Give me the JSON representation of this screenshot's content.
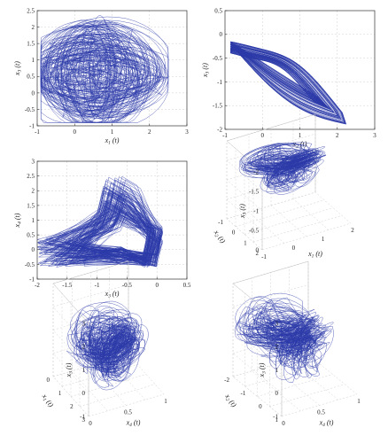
{
  "chart_data": [
    {
      "type": "line",
      "panel": "top-left",
      "xlabel": "x1 (t)",
      "ylabel": "x3 (t)",
      "xlim": [
        -1,
        3
      ],
      "ylim": [
        -1,
        2.5
      ],
      "xticks": [
        "-1",
        "0",
        "1",
        "2",
        "3"
      ],
      "yticks": [
        "-1",
        "-0.5",
        "0",
        "0.5",
        "1",
        "1.5",
        "2",
        "2.5"
      ],
      "grid": true,
      "series": [
        {
          "color": "#2b3aa8",
          "shape": "dense chaotic loops",
          "x_range": [
            -0.9,
            2.5
          ],
          "y_range": [
            -0.9,
            2.35
          ]
        }
      ]
    },
    {
      "type": "line",
      "panel": "top-right",
      "xlabel": "x2 (t)",
      "ylabel": "x3 (t)",
      "xlim": [
        -1,
        3
      ],
      "ylim": [
        -2,
        0.5
      ],
      "xticks": [
        "-1",
        "0",
        "1",
        "2",
        "3"
      ],
      "yticks": [
        "-2",
        "-1.5",
        "-1",
        "-0.5",
        "0",
        "0.5"
      ],
      "grid": true,
      "series": [
        {
          "color": "#2b3aa8",
          "shape": "boomerang band",
          "x_range": [
            -0.9,
            2.4
          ],
          "y_range": [
            -1.95,
            0.05
          ]
        }
      ]
    },
    {
      "type": "line",
      "panel": "middle-left",
      "xlabel": "x3 (t)",
      "ylabel": "x4 (t)",
      "xlim": [
        -2,
        0.5
      ],
      "ylim": [
        -1,
        3
      ],
      "xticks": [
        "-2",
        "-1.5",
        "-1",
        "-0.5",
        "0",
        "0.5"
      ],
      "yticks": [
        "-1",
        "-0.5",
        "0",
        "0.5",
        "1",
        "1.5",
        "2",
        "2.5",
        "3"
      ],
      "grid": true,
      "series": [
        {
          "color": "#2b3aa8",
          "shape": "fan of loops",
          "x_range": [
            -2,
            0.1
          ],
          "y_range": [
            -0.7,
            2.5
          ]
        }
      ]
    },
    {
      "type": "line",
      "panel": "middle-right-3d",
      "xlabel": "x1 (t)",
      "ylabel": "x2 (t)",
      "zlabel": "x3 (t)",
      "xticks": [
        "-1",
        "0",
        "1",
        "2"
      ],
      "yticks": [
        "-1",
        "0",
        "1",
        "2"
      ],
      "zticks": [
        "0",
        "-0.5",
        "-1",
        "-1.5",
        "-2"
      ],
      "grid": true,
      "series": [
        {
          "color": "#2b3aa8",
          "shape": "3d attractor"
        }
      ]
    },
    {
      "type": "line",
      "panel": "bottom-left-3d",
      "xlabel": "x4 (t)",
      "ylabel": "x1 (t)",
      "zlabel": "x3 (t)",
      "xticks": [
        "0",
        "0.5",
        "1"
      ],
      "yticks": [
        "0",
        "1",
        "2",
        "3"
      ],
      "zticks": [
        "-1",
        "0",
        "1",
        "2",
        "3"
      ],
      "grid": true,
      "series": [
        {
          "color": "#2b3aa8",
          "shape": "3d attractor"
        }
      ]
    },
    {
      "type": "line",
      "panel": "bottom-right-3d",
      "xlabel": "x4 (t)",
      "ylabel": "x2 (t)",
      "zlabel": "x3 (t)",
      "xticks": [
        "0",
        "0.5",
        "1"
      ],
      "yticks": [
        "-2",
        "-1",
        "0",
        "1"
      ],
      "zticks": [
        "-1",
        "0",
        "1",
        "2",
        "3"
      ],
      "grid": true,
      "series": [
        {
          "color": "#2b3aa8",
          "shape": "3d attractor"
        }
      ]
    }
  ]
}
